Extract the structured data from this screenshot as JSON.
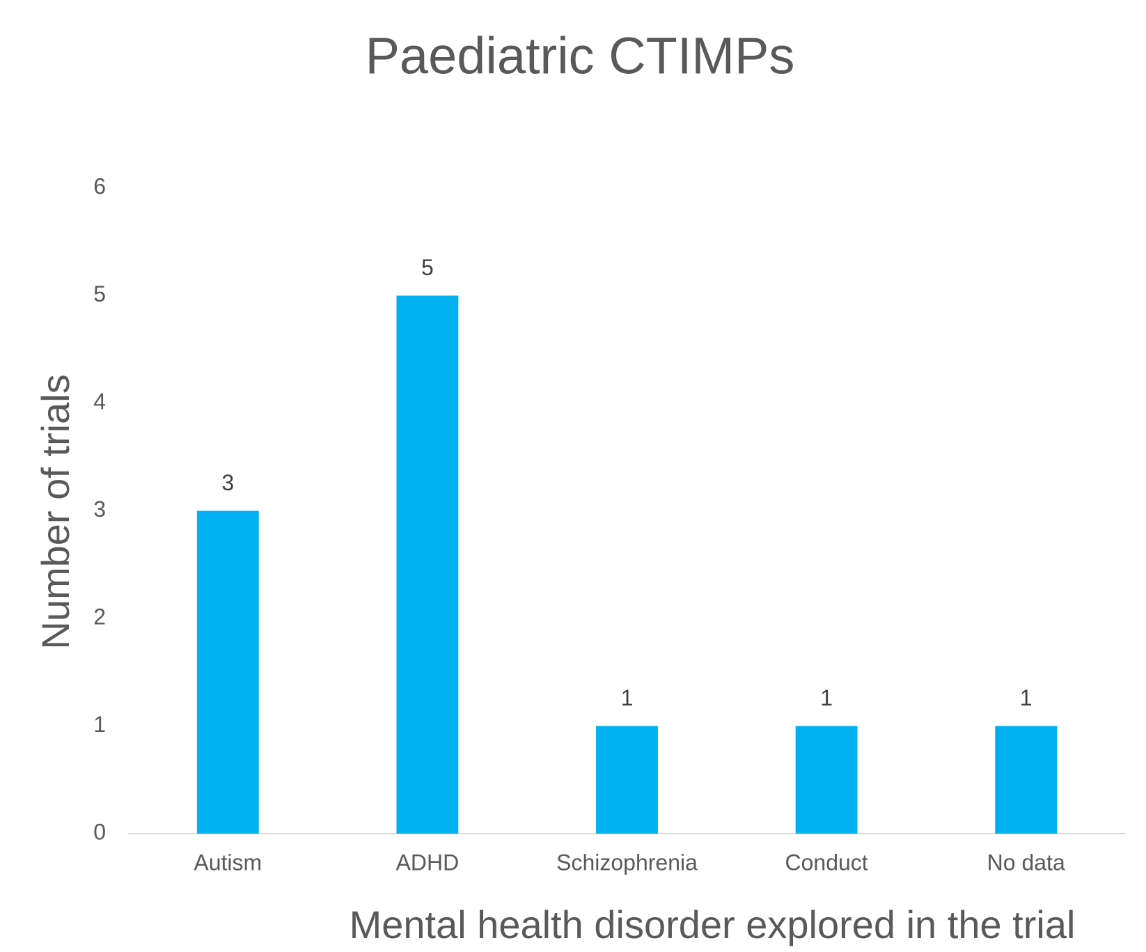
{
  "chart_data": {
    "type": "bar",
    "title": "Paediatric CTIMPs",
    "x_label": "Mental health disorder explored in the trial",
    "y_label": "Number of trials",
    "categories": [
      "Autism",
      "ADHD",
      "Schizophrenia",
      "Conduct",
      "No data"
    ],
    "values": [
      3,
      5,
      1,
      1,
      1
    ],
    "color": "#00b0f0",
    "ylim": [
      0,
      6
    ],
    "yticks": [
      0,
      1,
      2,
      3,
      4,
      5,
      6
    ],
    "grid": false
  }
}
